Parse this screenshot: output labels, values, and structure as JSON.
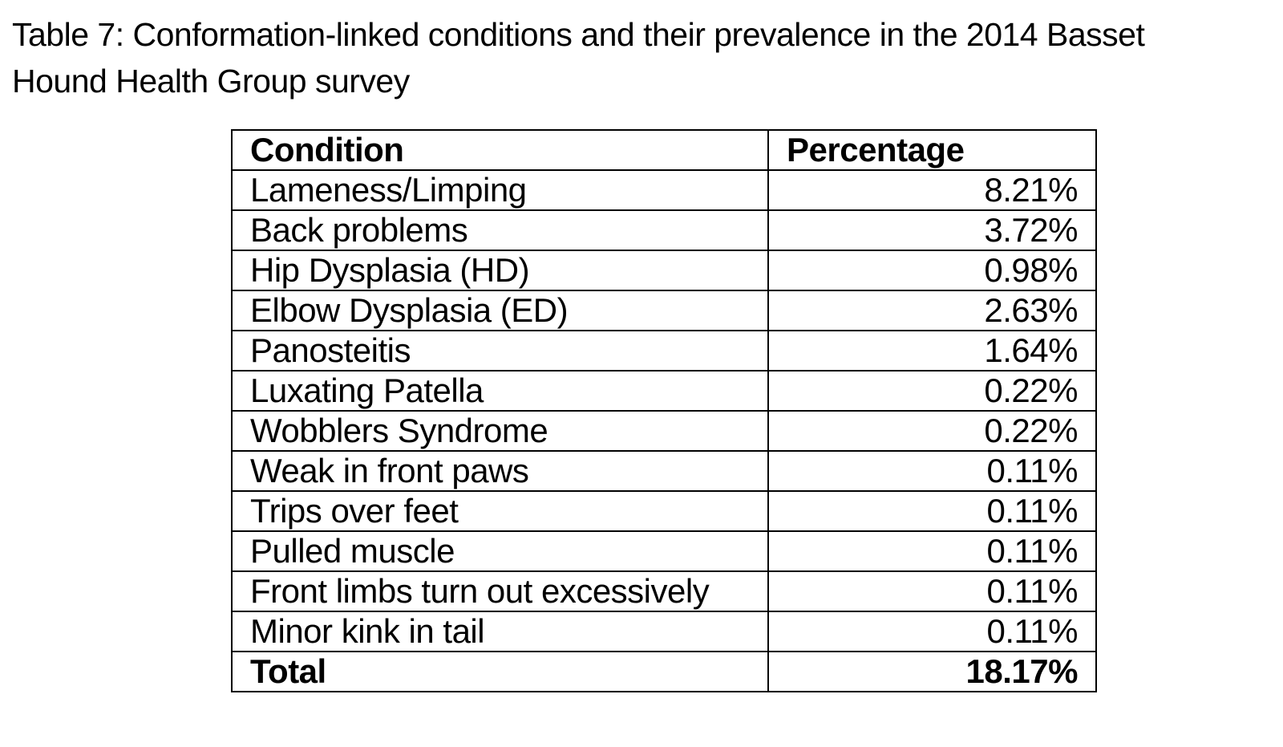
{
  "page": {
    "title": "Table 7: Conformation-linked conditions and their prevalence in the 2014 Basset\nHound Health Group survey"
  },
  "colors": {
    "text": "#000000",
    "background": "#ffffff",
    "table_border": "#000000"
  },
  "table": {
    "columns": [
      "Condition",
      "Percentage"
    ],
    "rows": [
      {
        "condition": "Lameness/Limping",
        "percentage": "8.21%"
      },
      {
        "condition": "Back problems",
        "percentage": "3.72%"
      },
      {
        "condition": "Hip Dysplasia (HD)",
        "percentage": "0.98%"
      },
      {
        "condition": "Elbow Dysplasia (ED)",
        "percentage": "2.63%"
      },
      {
        "condition": "Panosteitis",
        "percentage": "1.64%"
      },
      {
        "condition": "Luxating Patella",
        "percentage": "0.22%"
      },
      {
        "condition": "Wobblers Syndrome",
        "percentage": "0.22%"
      },
      {
        "condition": "Weak in front paws",
        "percentage": "0.11%"
      },
      {
        "condition": "Trips over feet",
        "percentage": "0.11%"
      },
      {
        "condition": "Pulled muscle",
        "percentage": "0.11%"
      },
      {
        "condition": "Front limbs turn out excessively",
        "percentage": "0.11%"
      },
      {
        "condition": "Minor kink in tail",
        "percentage": "0.11%"
      }
    ],
    "total": {
      "label": "Total",
      "percentage": "18.17%"
    }
  }
}
